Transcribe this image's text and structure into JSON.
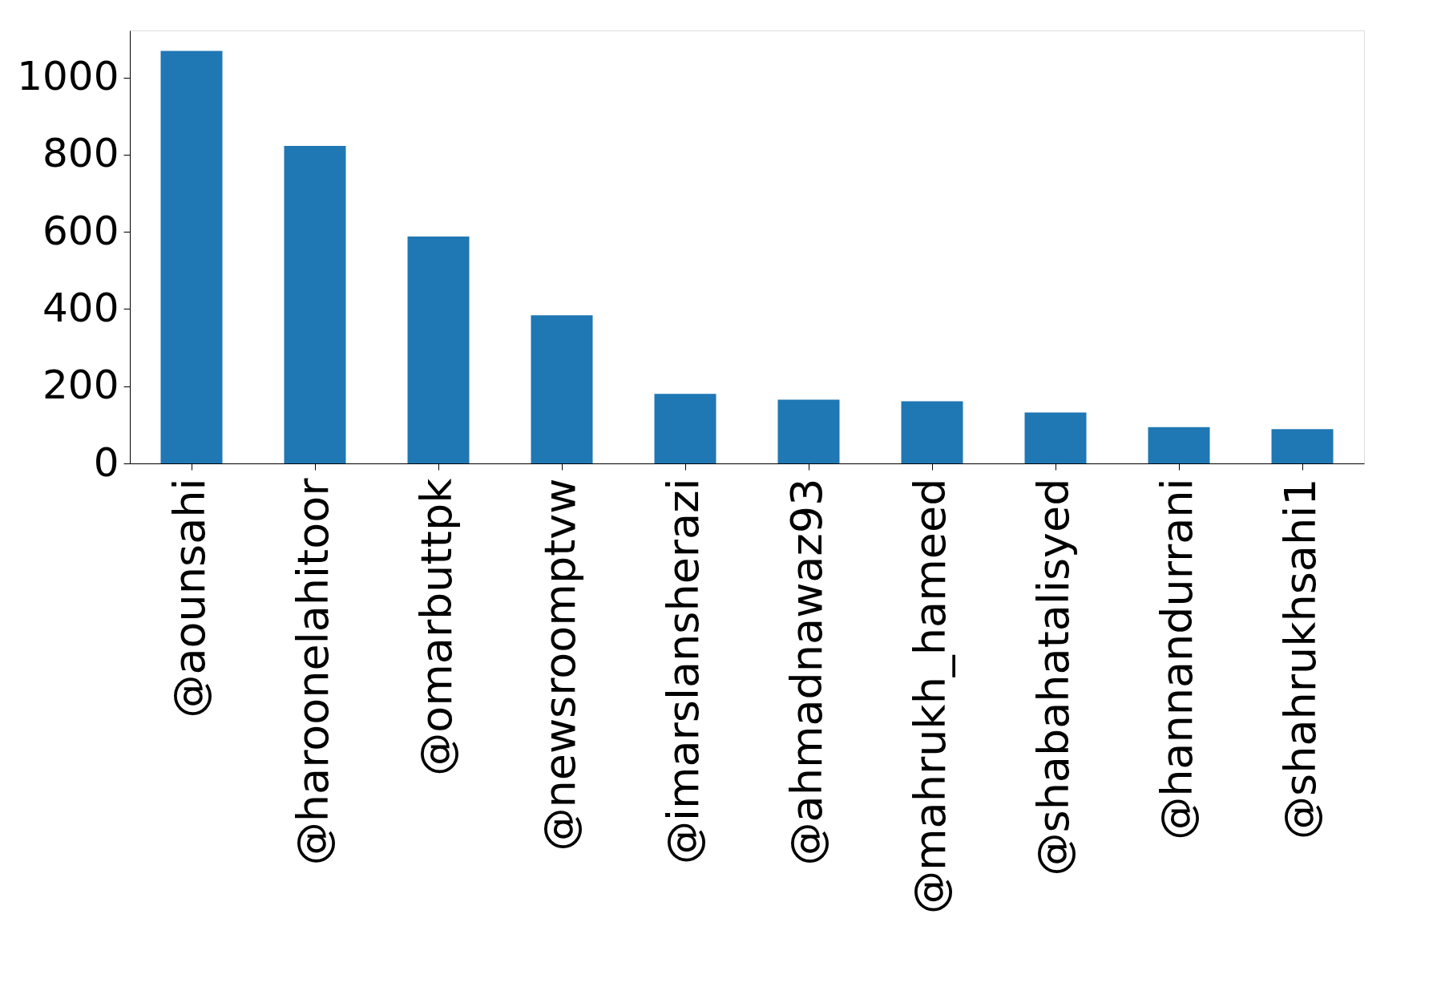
{
  "chart_data": {
    "type": "bar",
    "categories": [
      "@aounsahi",
      "@haroonelahitoor",
      "@omarbuttpk",
      "@newsroomptvw",
      "@imarslansherazi",
      "@ahmadnawaz93",
      "@mahrukh_hameed",
      "@shabahatalisyed",
      "@hannandurrani",
      "@shahrukhsahi1"
    ],
    "values": [
      1069,
      823,
      588,
      384,
      180,
      165,
      161,
      132,
      94,
      89
    ],
    "color": "#1f77b4",
    "ylim": [
      0,
      1122
    ],
    "yticks": [
      0,
      200,
      400,
      600,
      800,
      1000
    ],
    "grid": false
  }
}
